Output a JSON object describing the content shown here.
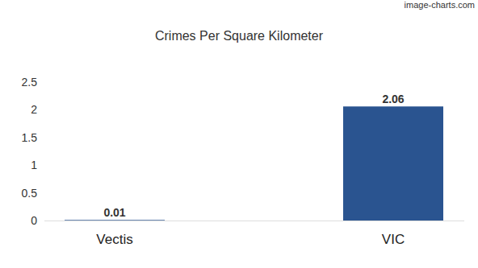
{
  "chart_data": {
    "type": "bar",
    "title": "Crimes Per Square Kilometer",
    "annotations": [
      "image-charts.com"
    ],
    "categories": [
      "Vectis",
      "VIC"
    ],
    "values": [
      0.01,
      2.06
    ],
    "color": "#2a5490",
    "ylim": [
      0,
      2.5
    ],
    "yticks": [
      0,
      0.5,
      1,
      1.5,
      2,
      2.5
    ],
    "grid": false,
    "data_labels": true
  }
}
